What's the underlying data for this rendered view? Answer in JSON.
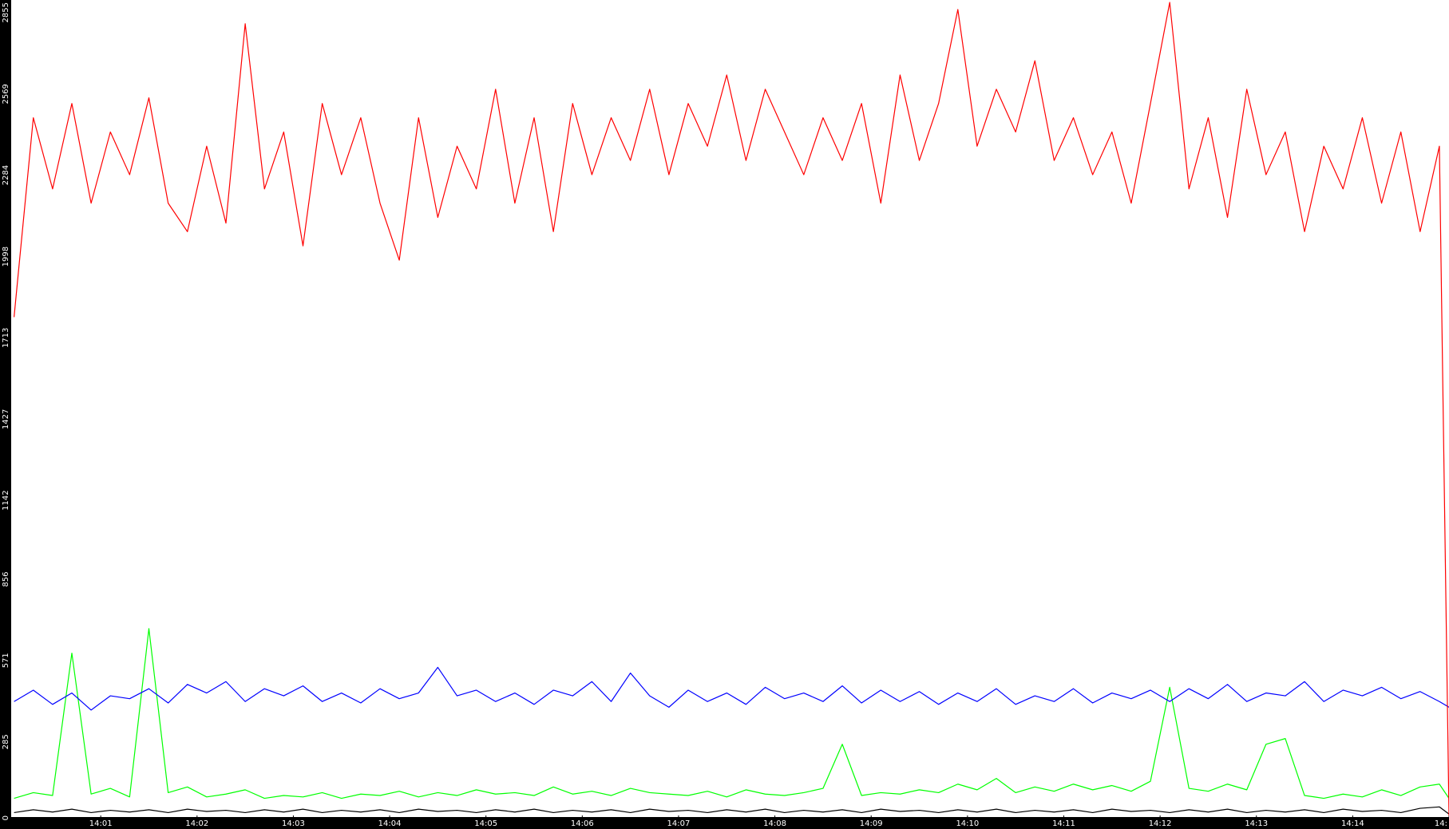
{
  "chart_data": {
    "type": "line",
    "x": [
      0.1,
      0.3,
      0.5,
      0.7,
      0.9,
      1.1,
      1.3,
      1.5,
      1.7,
      1.9,
      2.1,
      2.3,
      2.5,
      2.7,
      2.9,
      3.1,
      3.3,
      3.5,
      3.7,
      3.9,
      4.1,
      4.3,
      4.5,
      4.7,
      4.9,
      5.1,
      5.3,
      5.5,
      5.7,
      5.9,
      6.1,
      6.3,
      6.5,
      6.7,
      6.9,
      7.1,
      7.3,
      7.5,
      7.7,
      7.9,
      8.1,
      8.3,
      8.5,
      8.7,
      8.9,
      9.1,
      9.3,
      9.5,
      9.7,
      9.9,
      10.1,
      10.3,
      10.5,
      10.7,
      10.9,
      11.1,
      11.3,
      11.5,
      11.7,
      11.9,
      12.1,
      12.3,
      12.5,
      12.7,
      12.9,
      13.1,
      13.3,
      13.5,
      13.7,
      13.9,
      14.1,
      14.3,
      14.5,
      14.7,
      14.9,
      15.0
    ],
    "series": [
      {
        "color": "#ff0000",
        "values": [
          1750,
          2450,
          2200,
          2500,
          2150,
          2400,
          2250,
          2520,
          2150,
          2050,
          2350,
          2080,
          2780,
          2200,
          2400,
          2000,
          2500,
          2250,
          2450,
          2150,
          1950,
          2450,
          2100,
          2350,
          2200,
          2550,
          2150,
          2450,
          2050,
          2500,
          2250,
          2450,
          2300,
          2550,
          2250,
          2500,
          2350,
          2600,
          2300,
          2550,
          2400,
          2250,
          2450,
          2300,
          2500,
          2150,
          2600,
          2300,
          2500,
          2830,
          2350,
          2550,
          2400,
          2650,
          2300,
          2450,
          2250,
          2400,
          2150,
          2500,
          2855,
          2200,
          2450,
          2100,
          2550,
          2250,
          2400,
          2050,
          2350,
          2200,
          2450,
          2150,
          2400,
          2050,
          2350,
          0
        ]
      },
      {
        "color": "#0000ff",
        "values": [
          400,
          440,
          390,
          430,
          370,
          420,
          410,
          445,
          395,
          460,
          430,
          470,
          400,
          445,
          420,
          455,
          400,
          430,
          395,
          445,
          410,
          430,
          520,
          420,
          440,
          400,
          430,
          390,
          440,
          420,
          470,
          400,
          500,
          420,
          380,
          440,
          400,
          430,
          390,
          450,
          410,
          430,
          400,
          455,
          395,
          440,
          400,
          435,
          390,
          430,
          400,
          445,
          390,
          420,
          400,
          445,
          395,
          430,
          410,
          440,
          400,
          445,
          410,
          460,
          400,
          430,
          420,
          470,
          400,
          440,
          420,
          450,
          410,
          435,
          400,
          380
        ]
      },
      {
        "color": "#00ff00",
        "values": [
          60,
          80,
          70,
          570,
          75,
          95,
          65,
          656,
          80,
          100,
          65,
          75,
          90,
          60,
          70,
          65,
          80,
          60,
          75,
          70,
          85,
          65,
          80,
          70,
          90,
          75,
          80,
          70,
          100,
          75,
          85,
          70,
          95,
          80,
          75,
          70,
          85,
          65,
          90,
          75,
          70,
          80,
          95,
          250,
          70,
          80,
          75,
          90,
          80,
          110,
          90,
          130,
          80,
          100,
          85,
          110,
          90,
          105,
          85,
          120,
          450,
          95,
          85,
          110,
          90,
          250,
          270,
          70,
          60,
          75,
          65,
          90,
          70,
          100,
          110,
          60
        ]
      },
      {
        "color": "#000000",
        "values": [
          10,
          20,
          12,
          22,
          10,
          18,
          12,
          20,
          10,
          22,
          14,
          18,
          10,
          20,
          12,
          22,
          10,
          18,
          12,
          20,
          10,
          22,
          14,
          18,
          10,
          20,
          12,
          22,
          10,
          18,
          12,
          20,
          10,
          22,
          14,
          18,
          10,
          20,
          12,
          22,
          10,
          18,
          12,
          20,
          10,
          22,
          14,
          18,
          10,
          20,
          12,
          22,
          10,
          18,
          12,
          20,
          10,
          22,
          14,
          18,
          10,
          20,
          12,
          22,
          10,
          18,
          12,
          20,
          10,
          22,
          14,
          18,
          10,
          25,
          30,
          5
        ]
      }
    ],
    "xlim": [
      0.07,
      15.0
    ],
    "xticks": [
      {
        "value": 1,
        "label": "14:01"
      },
      {
        "value": 2,
        "label": "14:02"
      },
      {
        "value": 3,
        "label": "14:03"
      },
      {
        "value": 4,
        "label": "14:04"
      },
      {
        "value": 5,
        "label": "14:05"
      },
      {
        "value": 6,
        "label": "14:06"
      },
      {
        "value": 7,
        "label": "14:07"
      },
      {
        "value": 8,
        "label": "14:08"
      },
      {
        "value": 9,
        "label": "14:09"
      },
      {
        "value": 10,
        "label": "14:10"
      },
      {
        "value": 11,
        "label": "14:11"
      },
      {
        "value": 12,
        "label": "14:12"
      },
      {
        "value": 13,
        "label": "14:13"
      },
      {
        "value": 14,
        "label": "14:14"
      },
      {
        "value": 15,
        "label": "14:"
      }
    ],
    "ylim": [
      0,
      2855
    ],
    "yticks": [
      0,
      285,
      571,
      856,
      1142,
      1427,
      1713,
      1998,
      2284,
      2569,
      2855
    ],
    "grid": false
  }
}
